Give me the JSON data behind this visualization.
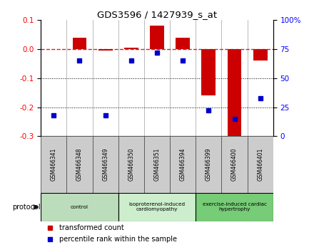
{
  "title": "GDS3596 / 1427939_s_at",
  "samples": [
    "GSM466341",
    "GSM466348",
    "GSM466349",
    "GSM466350",
    "GSM466351",
    "GSM466394",
    "GSM466399",
    "GSM466400",
    "GSM466401"
  ],
  "transformed_count": [
    0.0,
    0.04,
    -0.005,
    0.005,
    0.08,
    0.04,
    -0.16,
    -0.31,
    -0.04
  ],
  "percentile_rank": [
    18,
    65,
    18,
    65,
    72,
    65,
    22,
    15,
    33
  ],
  "ylim_left": [
    -0.3,
    0.1
  ],
  "ylim_right": [
    0,
    100
  ],
  "yticks_left": [
    -0.3,
    -0.2,
    -0.1,
    0.0,
    0.1
  ],
  "yticks_right": [
    0,
    25,
    50,
    75,
    100
  ],
  "bar_color": "#cc0000",
  "dot_color": "#0000cc",
  "groups": [
    {
      "label": "control",
      "cols": [
        0,
        1,
        2
      ],
      "color": "#aaddaa"
    },
    {
      "label": "isoproterenol-induced\ncardiomyopathy",
      "cols": [
        3,
        4,
        5
      ],
      "color": "#bbeeaa"
    },
    {
      "label": "exercise-induced cardiac\nhypertrophy",
      "cols": [
        6,
        7,
        8
      ],
      "color": "#66cc66"
    }
  ],
  "bg_color": "#ffffff",
  "sample_box_color": "#cccccc",
  "sample_box_edge": "#555555",
  "legend_tc": "transformed count",
  "legend_pr": "percentile rank within the sample"
}
